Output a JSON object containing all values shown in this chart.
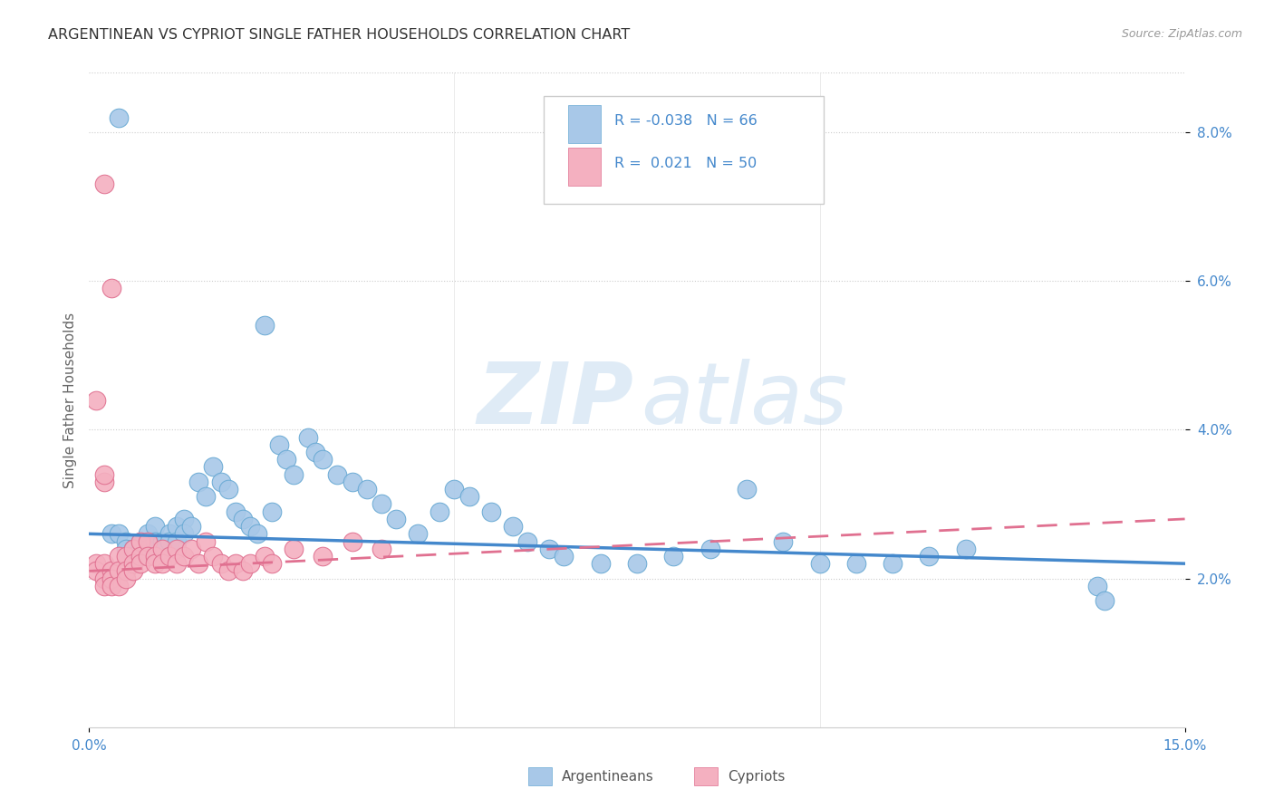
{
  "title": "ARGENTINEAN VS CYPRIOT SINGLE FATHER HOUSEHOLDS CORRELATION CHART",
  "source": "Source: ZipAtlas.com",
  "ylabel": "Single Father Households",
  "watermark_zip": "ZIP",
  "watermark_atlas": "atlas",
  "xlim": [
    0.0,
    0.15
  ],
  "ylim": [
    0.0,
    0.088
  ],
  "yticks": [
    0.02,
    0.04,
    0.06,
    0.08
  ],
  "xticks": [
    0.0,
    0.15
  ],
  "blue_fill": "#A8C8E8",
  "blue_edge": "#6AAAD4",
  "pink_fill": "#F4B0C0",
  "pink_edge": "#E07090",
  "blue_line": "#4488CC",
  "pink_line": "#E07090",
  "tick_color": "#4488CC",
  "grid_color": "#CCCCCC",
  "legend_text_color": "#4488CC",
  "title_color": "#333333",
  "source_color": "#999999",
  "ylabel_color": "#666666",
  "arg_x": [
    0.003,
    0.004,
    0.005,
    0.005,
    0.006,
    0.006,
    0.007,
    0.007,
    0.008,
    0.008,
    0.009,
    0.009,
    0.01,
    0.01,
    0.011,
    0.011,
    0.012,
    0.012,
    0.013,
    0.013,
    0.014,
    0.015,
    0.016,
    0.017,
    0.018,
    0.019,
    0.02,
    0.021,
    0.022,
    0.023,
    0.025,
    0.026,
    0.027,
    0.028,
    0.03,
    0.031,
    0.032,
    0.034,
    0.036,
    0.038,
    0.04,
    0.042,
    0.045,
    0.048,
    0.05,
    0.052,
    0.055,
    0.058,
    0.06,
    0.063,
    0.065,
    0.07,
    0.075,
    0.08,
    0.085,
    0.09,
    0.095,
    0.1,
    0.105,
    0.11,
    0.115,
    0.12,
    0.138,
    0.004,
    0.024,
    0.139
  ],
  "arg_y": [
    0.026,
    0.026,
    0.025,
    0.024,
    0.024,
    0.023,
    0.025,
    0.023,
    0.026,
    0.024,
    0.027,
    0.025,
    0.025,
    0.024,
    0.026,
    0.025,
    0.027,
    0.025,
    0.028,
    0.026,
    0.027,
    0.033,
    0.031,
    0.035,
    0.033,
    0.032,
    0.029,
    0.028,
    0.027,
    0.026,
    0.029,
    0.038,
    0.036,
    0.034,
    0.039,
    0.037,
    0.036,
    0.034,
    0.033,
    0.032,
    0.03,
    0.028,
    0.026,
    0.029,
    0.032,
    0.031,
    0.029,
    0.027,
    0.025,
    0.024,
    0.023,
    0.022,
    0.022,
    0.023,
    0.024,
    0.032,
    0.025,
    0.022,
    0.022,
    0.022,
    0.023,
    0.024,
    0.019,
    0.082,
    0.054,
    0.017
  ],
  "cyp_x": [
    0.001,
    0.001,
    0.002,
    0.002,
    0.002,
    0.003,
    0.003,
    0.003,
    0.004,
    0.004,
    0.004,
    0.005,
    0.005,
    0.005,
    0.006,
    0.006,
    0.006,
    0.007,
    0.007,
    0.007,
    0.008,
    0.008,
    0.009,
    0.009,
    0.01,
    0.01,
    0.011,
    0.012,
    0.012,
    0.013,
    0.014,
    0.015,
    0.016,
    0.017,
    0.018,
    0.019,
    0.02,
    0.021,
    0.022,
    0.024,
    0.025,
    0.028,
    0.032,
    0.036,
    0.04,
    0.002,
    0.003,
    0.001,
    0.002,
    0.002
  ],
  "cyp_y": [
    0.022,
    0.021,
    0.022,
    0.02,
    0.019,
    0.021,
    0.02,
    0.019,
    0.023,
    0.021,
    0.019,
    0.023,
    0.021,
    0.02,
    0.024,
    0.022,
    0.021,
    0.025,
    0.023,
    0.022,
    0.025,
    0.023,
    0.023,
    0.022,
    0.024,
    0.022,
    0.023,
    0.024,
    0.022,
    0.023,
    0.024,
    0.022,
    0.025,
    0.023,
    0.022,
    0.021,
    0.022,
    0.021,
    0.022,
    0.023,
    0.022,
    0.024,
    0.023,
    0.025,
    0.024,
    0.073,
    0.059,
    0.044,
    0.033,
    0.034
  ],
  "arg_trend_x": [
    0.0,
    0.15
  ],
  "arg_trend_y": [
    0.026,
    0.022
  ],
  "cyp_trend_x": [
    0.0,
    0.15
  ],
  "cyp_trend_y": [
    0.021,
    0.028
  ]
}
